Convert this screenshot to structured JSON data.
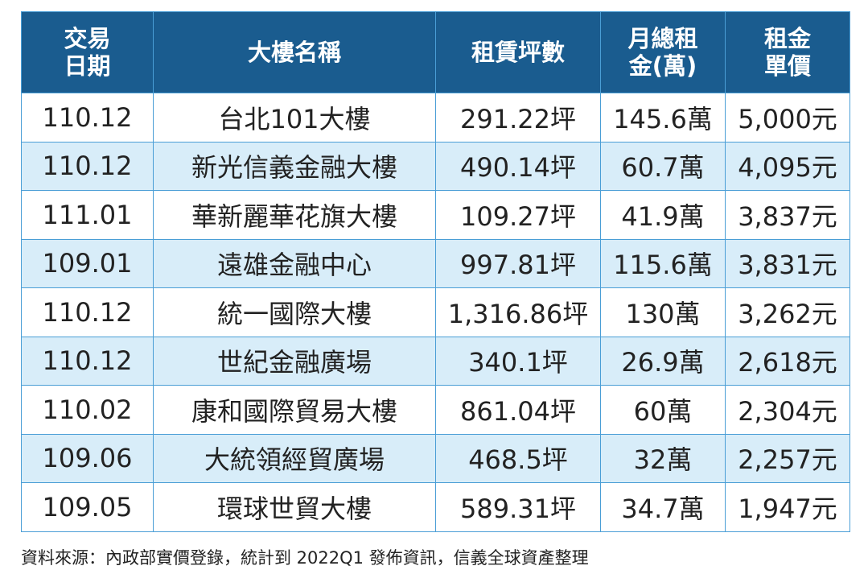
{
  "table": {
    "header": {
      "date_line1": "交易",
      "date_line2": "日期",
      "building": "大樓名稱",
      "area": "租賃坪數",
      "rent_line1": "月總租",
      "rent_line2": "金(萬)",
      "price_line1": "租金",
      "price_line2": "單價"
    },
    "rows": [
      {
        "date": "110.12",
        "building": "台北101大樓",
        "area": "291.22坪",
        "rent": "145.6萬",
        "price": "5,000元"
      },
      {
        "date": "110.12",
        "building": "新光信義金融大樓",
        "area": "490.14坪",
        "rent": "60.7萬",
        "price": "4,095元"
      },
      {
        "date": "111.01",
        "building": "華新麗華花旗大樓",
        "area": "109.27坪",
        "rent": "41.9萬",
        "price": "3,837元"
      },
      {
        "date": "109.01",
        "building": "遠雄金融中心",
        "area": "997.81坪",
        "rent": "115.6萬",
        "price": "3,831元"
      },
      {
        "date": "110.12",
        "building": "統一國際大樓",
        "area": "1,316.86坪",
        "rent": "130萬",
        "price": "3,262元"
      },
      {
        "date": "110.12",
        "building": "世紀金融廣場",
        "area": "340.1坪",
        "rent": "26.9萬",
        "price": "2,618元"
      },
      {
        "date": "110.02",
        "building": "康和國際貿易大樓",
        "area": "861.04坪",
        "rent": "60萬",
        "price": "2,304元"
      },
      {
        "date": "109.06",
        "building": "大統領經貿廣場",
        "area": "468.5坪",
        "rent": "32萬",
        "price": "2,257元"
      },
      {
        "date": "109.05",
        "building": "環球世貿大樓",
        "area": "589.31坪",
        "rent": "34.7萬",
        "price": "1,947元"
      }
    ]
  },
  "source": "資料來源：內政部實價登錄，統計到 2022Q1 發佈資訊，信義全球資產整理",
  "colors": {
    "header_bg": "#1a5c8f",
    "border": "#4a9ed6",
    "alt_row_bg": "#d8edf9"
  }
}
